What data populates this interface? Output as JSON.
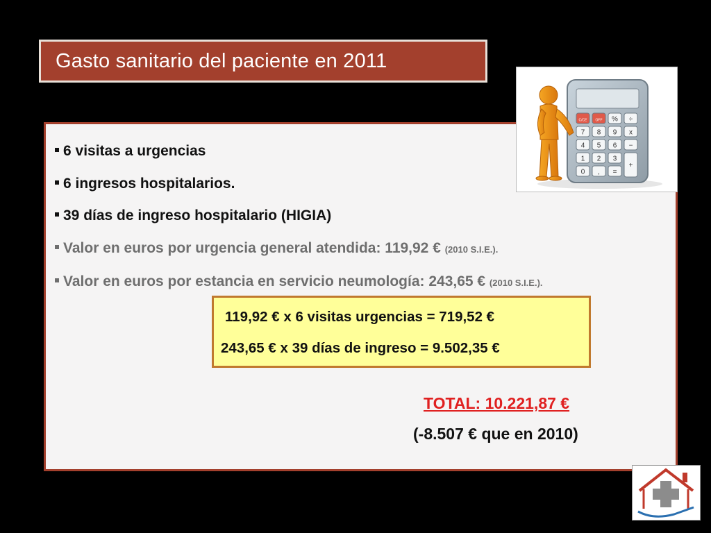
{
  "title": "Gasto sanitario del paciente en 2011",
  "bullets": [
    {
      "text": "6 visitas a urgencias",
      "note": ""
    },
    {
      "text": "6 ingresos hospitalarios.",
      "note": ""
    },
    {
      "text": "39 días de ingreso hospitalario (HIGIA)",
      "note": ""
    },
    {
      "text": "Valor en euros por urgencia general atendida: 119,92 € ",
      "note": "(2010 S.I.E.)."
    },
    {
      "text": "Valor en euros por estancia en servicio neumología: 243,65 € ",
      "note": "(2010 S.I.E.)."
    }
  ],
  "calculation": {
    "line1": "119,92 € x 6 visitas urgencias = 719,52 €",
    "line2": "243,65 € x 39 días de ingreso = 9.502,35 €"
  },
  "total": "TOTAL:  10.221,87 €",
  "difference": "(-8.507 € que en 2010)",
  "calculator_keys": [
    "C/CE",
    "OFF",
    "%",
    "÷",
    "7",
    "8",
    "9",
    "x",
    "4",
    "5",
    "6",
    "−",
    "1",
    "2",
    "3",
    "+",
    "0",
    ",",
    "="
  ],
  "colors": {
    "title_bg": "#a3402d",
    "highlight_bg": "#ffff99",
    "total_text": "#e02020",
    "background": "#000000"
  }
}
